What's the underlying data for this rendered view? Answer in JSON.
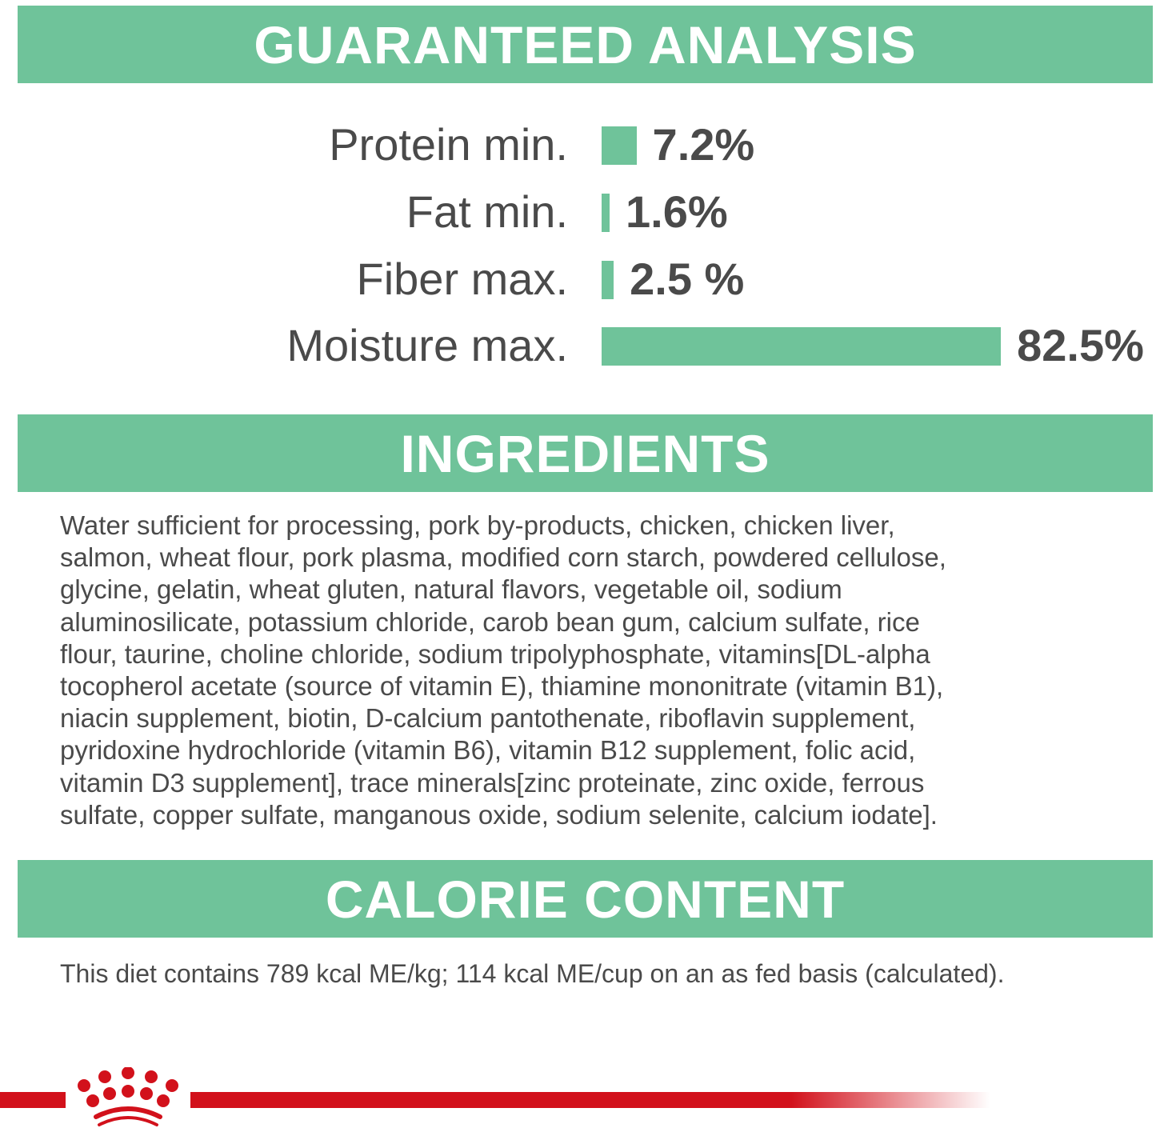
{
  "colors": {
    "accent": "#6fc39a",
    "text": "#4a4a4a",
    "brand_red": "#d2111b"
  },
  "analysis": {
    "title": "GUARANTEED ANALYSIS",
    "rows": [
      {
        "label": "Protein min.",
        "value": "7.2%",
        "percent": 7.2
      },
      {
        "label": "Fat min.",
        "value": "1.6%",
        "percent": 1.6
      },
      {
        "label": "Fiber max.",
        "value": "2.5 %",
        "percent": 2.5
      },
      {
        "label": "Moisture max.",
        "value": "82.5%",
        "percent": 82.5
      }
    ]
  },
  "ingredients": {
    "title": "INGREDIENTS",
    "lines": [
      "Water sufficient for processing, pork by-products, chicken, chicken liver,",
      "salmon, wheat flour, pork plasma, modified corn starch, powdered cellulose,",
      "glycine, gelatin, wheat gluten, natural flavors, vegetable oil, sodium",
      "aluminosilicate, potassium chloride, carob bean gum, calcium sulfate, rice",
      "flour, taurine, choline chloride, sodium tripolyphosphate, vitamins[DL-alpha",
      "tocopherol acetate (source of vitamin E), thiamine mononitrate (vitamin B1),",
      "niacin supplement, biotin, D-calcium pantothenate, riboflavin supplement,",
      "pyridoxine hydrochloride (vitamin B6), vitamin B12 supplement, folic acid,",
      "vitamin D3 supplement], trace minerals[zinc proteinate, zinc oxide, ferrous",
      "sulfate, copper sulfate, manganous oxide, sodium selenite, calcium iodate]."
    ]
  },
  "calorie": {
    "title": "CALORIE CONTENT",
    "text": "This diet contains 789 kcal ME/kg; 114 kcal ME/cup on an as fed basis (calculated)."
  },
  "footer": {
    "logo_icon": "royal-canin-crown-icon"
  }
}
